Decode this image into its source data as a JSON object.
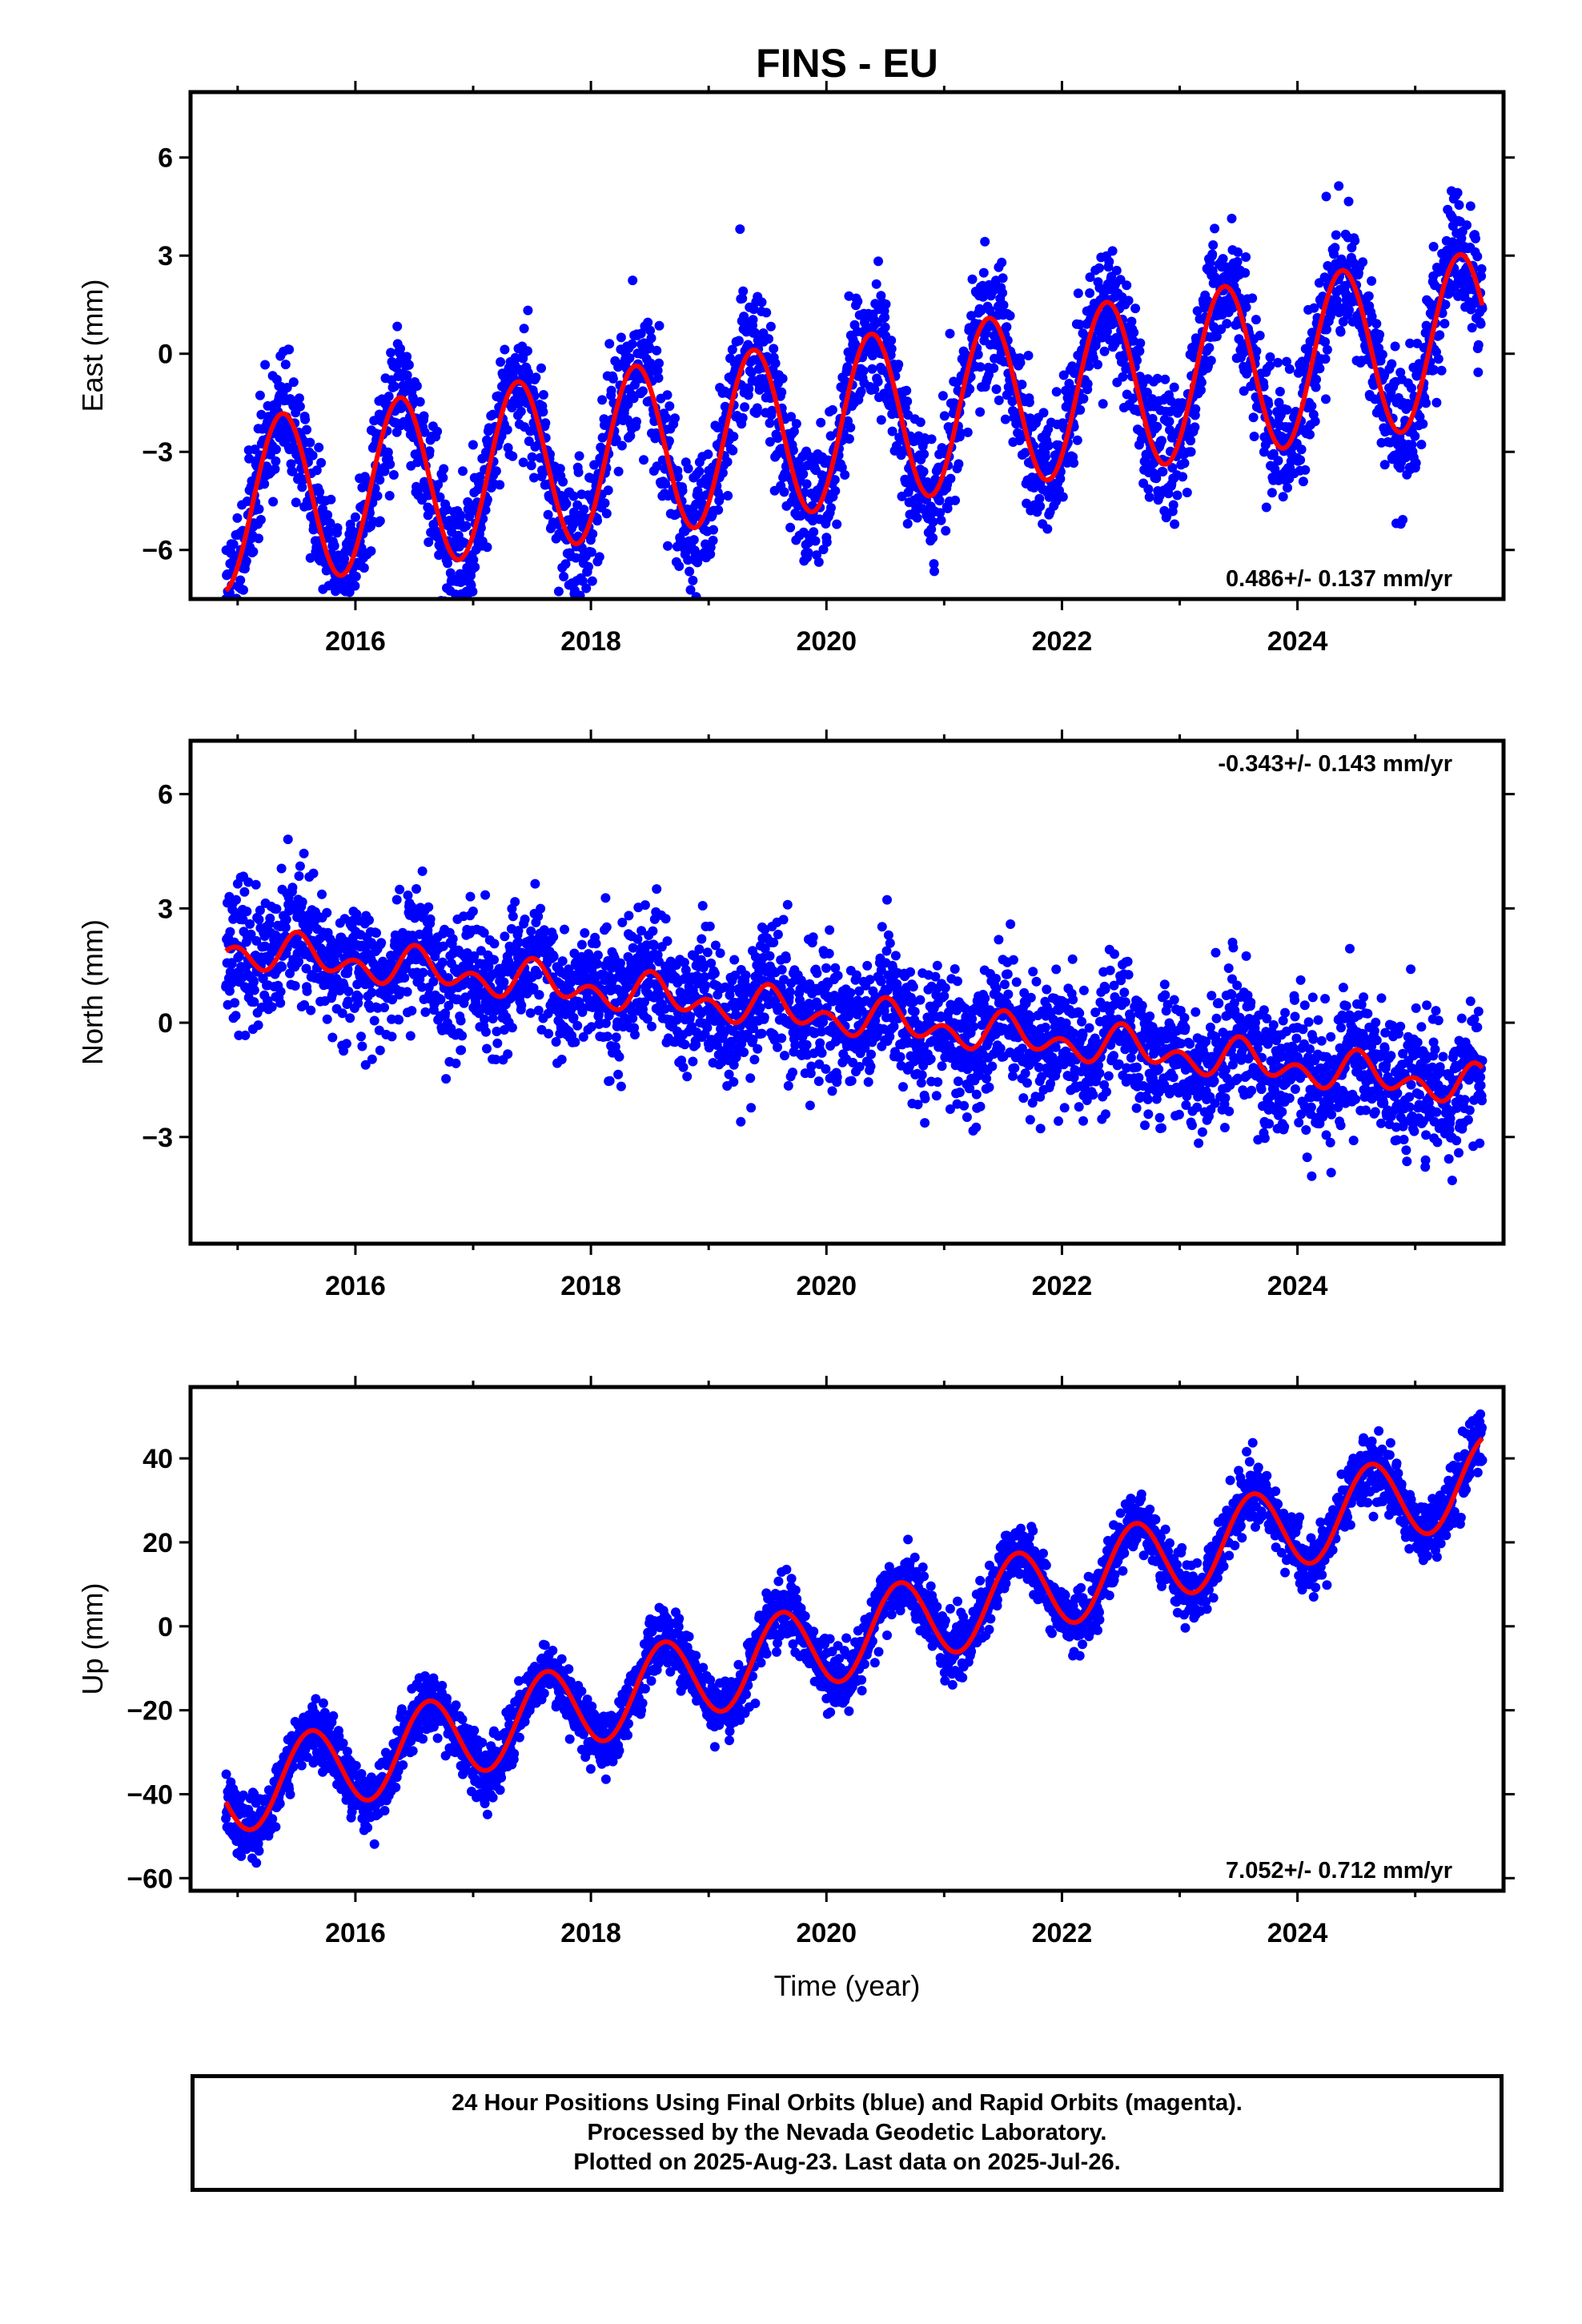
{
  "title": "FINS - EU",
  "xlabel": "Time (year)",
  "x_tick_labels": [
    "2016",
    "2018",
    "2020",
    "2022",
    "2024"
  ],
  "colors": {
    "observations": "#0000ff",
    "model": "#ff0000",
    "frame": "#000000"
  },
  "chart_data": [
    {
      "type": "scatter",
      "component": "east",
      "ylabel": "East (mm)",
      "xlim": [
        2014.6,
        2025.75
      ],
      "ylim": [
        -7.5,
        8.0
      ],
      "yticks": [
        -6,
        -3,
        0,
        3,
        6
      ],
      "ytick_labels": [
        "−6",
        "−3",
        "0",
        "3",
        "6"
      ],
      "rate_label": "0.486+/- 0.137 mm/yr",
      "rate_position": "bottom-right",
      "model": {
        "intercept": -2.18,
        "trend": 0.486,
        "t0": 2020.0,
        "annual_amplitude": 2.6,
        "annual_peak_fraction": 0.38,
        "semiannual_amplitude": 0.0,
        "semiannual_peak_fraction": 0.0
      },
      "data_span": [
        2014.9,
        2025.57
      ],
      "noise_sd": 0.95,
      "n_points": 3300,
      "seed": 11
    },
    {
      "type": "scatter",
      "component": "north",
      "ylabel": "North (mm)",
      "xlim": [
        2014.6,
        2025.75
      ],
      "ylim": [
        -5.8,
        7.4
      ],
      "yticks": [
        -3,
        0,
        3,
        6
      ],
      "ytick_labels": [
        "−3",
        "0",
        "3",
        "6"
      ],
      "rate_label": "-0.343+/- 0.143 mm/yr",
      "rate_position": "top-right",
      "model": {
        "intercept": 0.2,
        "trend": -0.343,
        "t0": 2020.0,
        "annual_amplitude": 0.3,
        "annual_peak_fraction": 0.55,
        "semiannual_amplitude": 0.35,
        "semiannual_peak_fraction": 0.0
      },
      "data_span": [
        2014.9,
        2025.57
      ],
      "noise_sd": 0.85,
      "n_points": 3300,
      "seed": 23
    },
    {
      "type": "scatter",
      "component": "up",
      "ylabel": "Up (mm)",
      "xlim": [
        2014.6,
        2025.75
      ],
      "ylim": [
        -63.0,
        57.0
      ],
      "yticks": [
        -60,
        -40,
        -20,
        0,
        20,
        40
      ],
      "ytick_labels": [
        "−60",
        "−40",
        "−20",
        "0",
        "20",
        "40"
      ],
      "rate_label": "7.052+/- 0.712 mm/yr",
      "rate_position": "bottom-right",
      "model": {
        "intercept": -4.0,
        "trend": 7.052,
        "t0": 2020.0,
        "annual_amplitude": 10.0,
        "annual_peak_fraction": 0.62,
        "semiannual_amplitude": 0.0,
        "semiannual_peak_fraction": 0.0
      },
      "data_span": [
        2014.9,
        2025.57
      ],
      "noise_sd": 3.6,
      "n_points": 3300,
      "seed": 37
    }
  ],
  "footer": {
    "line1": "24 Hour Positions Using Final Orbits (blue) and Rapid Orbits (magenta).",
    "line2": "Processed by the Nevada Geodetic Laboratory.",
    "line3": "Plotted on 2025-Aug-23. Last data on 2025-Jul-26."
  }
}
